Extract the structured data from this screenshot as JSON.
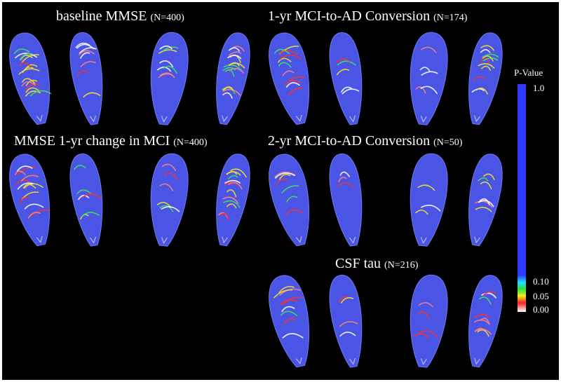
{
  "panels": [
    {
      "title": "baseline MMSE",
      "n": "(N=400)"
    },
    {
      "title": "1-yr MCI-to-AD Conversion",
      "n": "(N=174)"
    },
    {
      "title": "MMSE 1-yr change in MCI",
      "n": "(N=400)"
    },
    {
      "title": "2-yr MCI-to-AD Conversion",
      "n": "(N=50)"
    },
    {
      "title": "CSF tau",
      "n": "(N=216)"
    }
  ],
  "colorbar": {
    "label": "P-Value",
    "ticks": [
      "1.0",
      "0.10",
      "0.05",
      "0.00"
    ]
  }
}
